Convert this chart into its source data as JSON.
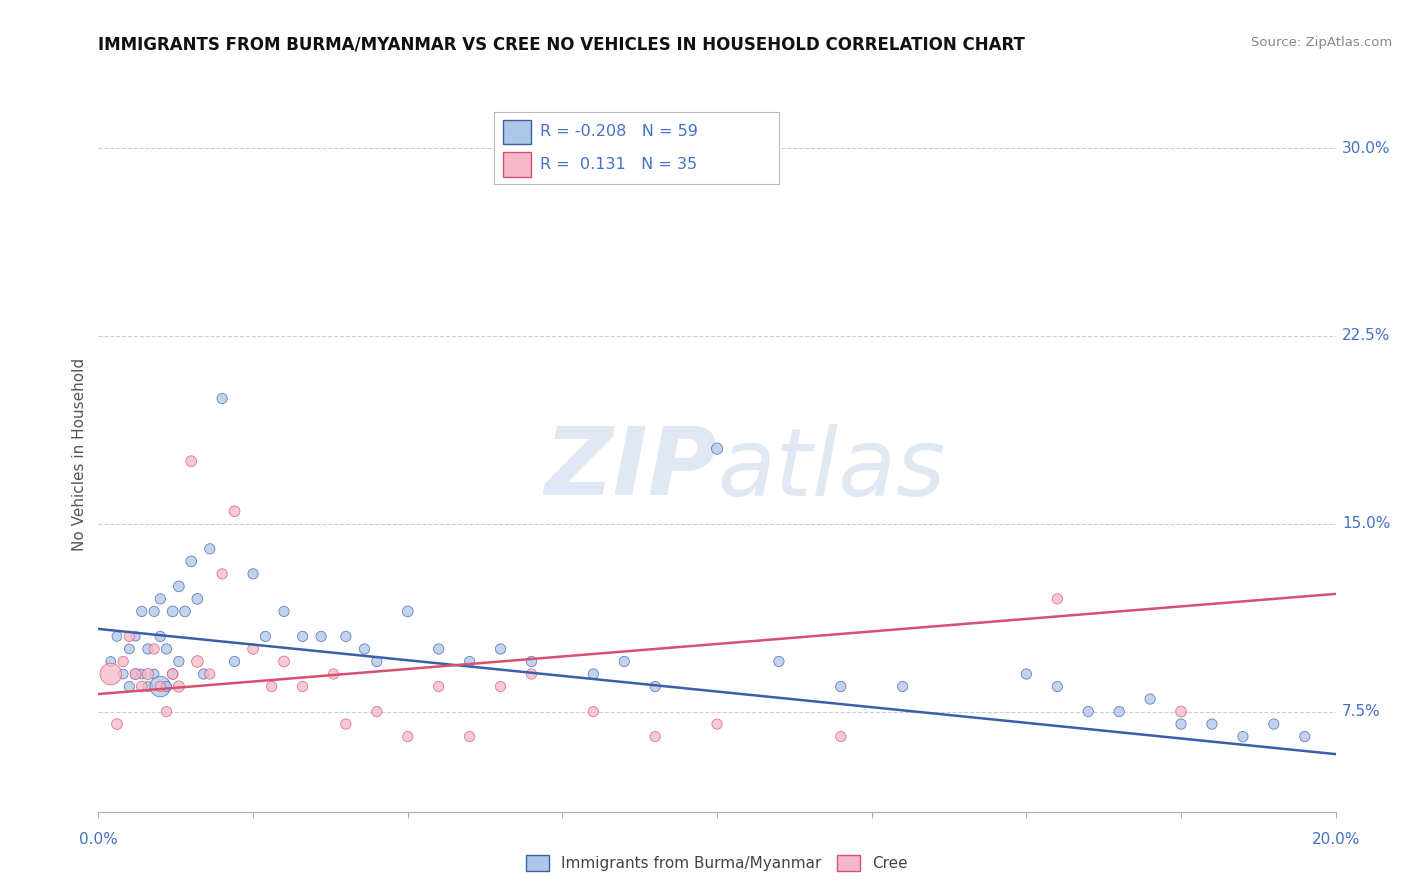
{
  "title": "IMMIGRANTS FROM BURMA/MYANMAR VS CREE NO VEHICLES IN HOUSEHOLD CORRELATION CHART",
  "source": "Source: ZipAtlas.com",
  "ylabel": "No Vehicles in Household",
  "yticks": [
    "7.5%",
    "15.0%",
    "22.5%",
    "30.0%"
  ],
  "ytick_vals": [
    0.075,
    0.15,
    0.225,
    0.3
  ],
  "xmin": 0.0,
  "xmax": 0.2,
  "ymin": 0.035,
  "ymax": 0.32,
  "legend_r_blue": "-0.208",
  "legend_n_blue": "59",
  "legend_r_pink": " 0.131",
  "legend_n_pink": "35",
  "blue_color": "#aec6e8",
  "pink_color": "#f5b8c8",
  "trendline_blue": "#3a5fa8",
  "trendline_pink": "#d85070",
  "blue_trendline_start_y": 0.108,
  "blue_trendline_end_y": 0.058,
  "pink_trendline_start_y": 0.082,
  "pink_trendline_end_y": 0.122,
  "blue_scatter_x": [
    0.002,
    0.003,
    0.004,
    0.005,
    0.005,
    0.006,
    0.006,
    0.007,
    0.007,
    0.008,
    0.008,
    0.009,
    0.009,
    0.01,
    0.01,
    0.01,
    0.011,
    0.011,
    0.012,
    0.012,
    0.013,
    0.013,
    0.014,
    0.015,
    0.016,
    0.017,
    0.018,
    0.02,
    0.022,
    0.025,
    0.027,
    0.03,
    0.033,
    0.036,
    0.04,
    0.043,
    0.045,
    0.05,
    0.055,
    0.06,
    0.065,
    0.07,
    0.08,
    0.085,
    0.09,
    0.1,
    0.11,
    0.12,
    0.13,
    0.15,
    0.155,
    0.16,
    0.165,
    0.17,
    0.175,
    0.18,
    0.185,
    0.19,
    0.195
  ],
  "blue_scatter_y": [
    0.095,
    0.105,
    0.09,
    0.1,
    0.085,
    0.105,
    0.09,
    0.115,
    0.09,
    0.1,
    0.085,
    0.115,
    0.09,
    0.12,
    0.105,
    0.085,
    0.1,
    0.085,
    0.115,
    0.09,
    0.125,
    0.095,
    0.115,
    0.135,
    0.12,
    0.09,
    0.14,
    0.2,
    0.095,
    0.13,
    0.105,
    0.115,
    0.105,
    0.105,
    0.105,
    0.1,
    0.095,
    0.115,
    0.1,
    0.095,
    0.1,
    0.095,
    0.09,
    0.095,
    0.085,
    0.18,
    0.095,
    0.085,
    0.085,
    0.09,
    0.085,
    0.075,
    0.075,
    0.08,
    0.07,
    0.07,
    0.065,
    0.07,
    0.065
  ],
  "blue_scatter_size": [
    50,
    50,
    50,
    50,
    55,
    45,
    55,
    55,
    50,
    55,
    50,
    55,
    50,
    55,
    55,
    220,
    55,
    55,
    60,
    55,
    60,
    55,
    60,
    60,
    60,
    55,
    55,
    55,
    55,
    55,
    55,
    55,
    55,
    55,
    55,
    55,
    55,
    60,
    55,
    55,
    55,
    55,
    55,
    55,
    55,
    65,
    55,
    55,
    55,
    55,
    55,
    55,
    55,
    55,
    55,
    55,
    55,
    55,
    55
  ],
  "pink_scatter_x": [
    0.002,
    0.003,
    0.004,
    0.005,
    0.006,
    0.007,
    0.008,
    0.009,
    0.01,
    0.011,
    0.012,
    0.013,
    0.015,
    0.016,
    0.018,
    0.02,
    0.022,
    0.025,
    0.028,
    0.03,
    0.033,
    0.038,
    0.04,
    0.045,
    0.05,
    0.055,
    0.06,
    0.065,
    0.07,
    0.08,
    0.09,
    0.1,
    0.12,
    0.155,
    0.175
  ],
  "pink_scatter_y": [
    0.09,
    0.07,
    0.095,
    0.105,
    0.09,
    0.085,
    0.09,
    0.1,
    0.085,
    0.075,
    0.09,
    0.085,
    0.175,
    0.095,
    0.09,
    0.13,
    0.155,
    0.1,
    0.085,
    0.095,
    0.085,
    0.09,
    0.07,
    0.075,
    0.065,
    0.085,
    0.065,
    0.085,
    0.09,
    0.075,
    0.065,
    0.07,
    0.065,
    0.12,
    0.075
  ],
  "pink_scatter_size": [
    240,
    60,
    55,
    55,
    65,
    60,
    65,
    55,
    55,
    55,
    60,
    65,
    60,
    70,
    55,
    55,
    60,
    60,
    55,
    60,
    55,
    55,
    55,
    55,
    55,
    55,
    55,
    55,
    55,
    55,
    55,
    55,
    55,
    55,
    60
  ]
}
